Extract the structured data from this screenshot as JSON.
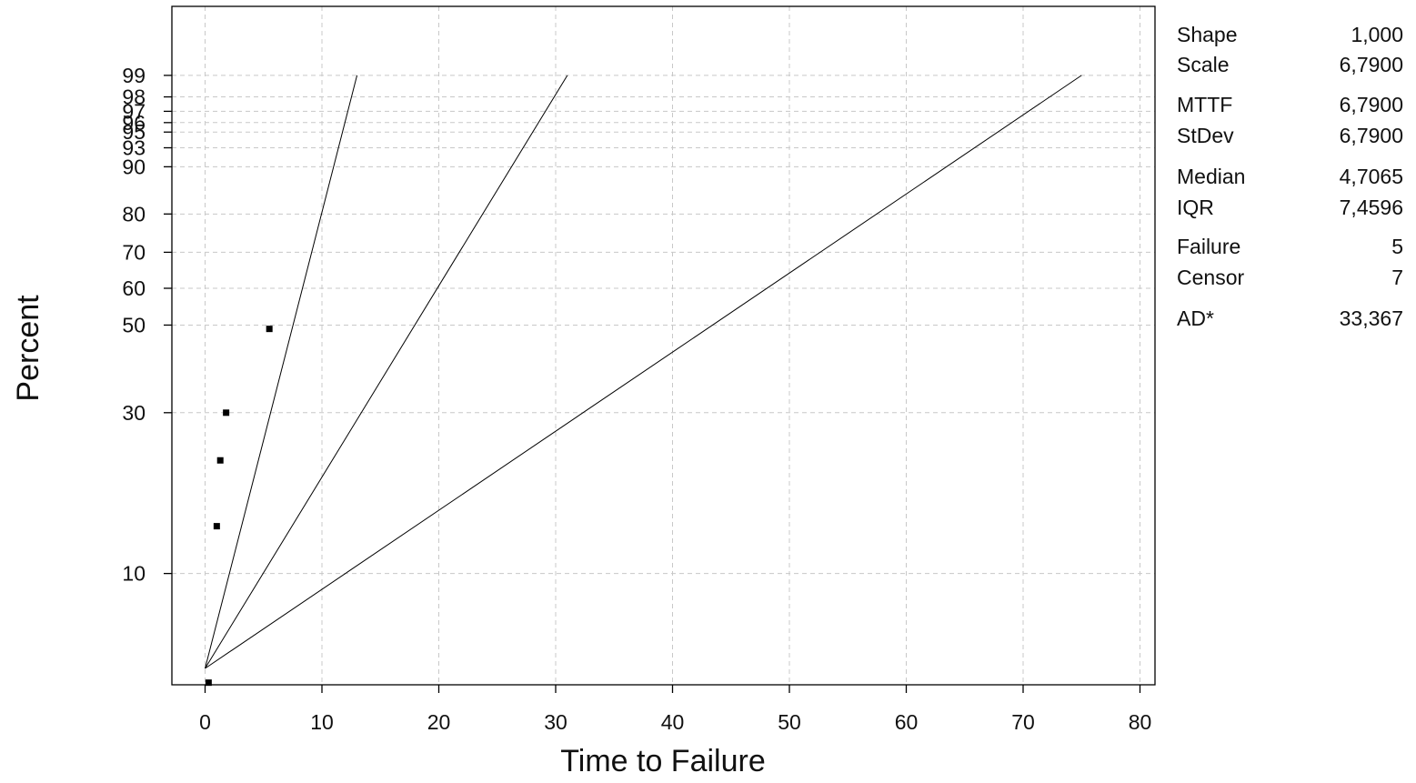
{
  "chart_data": {
    "type": "scatter",
    "title": "",
    "xlabel": "Time to Failure",
    "ylabel": "Percent",
    "xlim": [
      -3,
      81
    ],
    "x_ticks": [
      0,
      10,
      20,
      30,
      40,
      50,
      60,
      70,
      80
    ],
    "x_tick_labels": [
      "0",
      "10",
      "20",
      "30",
      "40",
      "50",
      "60",
      "70",
      "80"
    ],
    "y_scale": "exponential probability (-ln(1-p))",
    "y_ticks": [
      10,
      30,
      50,
      60,
      70,
      80,
      90,
      93,
      95,
      96,
      97,
      98,
      99
    ],
    "y_tick_labels": [
      "10",
      "30",
      "50",
      "60",
      "70",
      "80",
      "90",
      "93",
      "95",
      "96",
      "97",
      "98",
      "99"
    ],
    "grid": true,
    "points": [
      {
        "x": 0.3,
        "y": 4.5
      },
      {
        "x": 1.0,
        "y": 14
      },
      {
        "x": 1.3,
        "y": 22
      },
      {
        "x": 1.8,
        "y": 30
      },
      {
        "x": 5.5,
        "y": 49
      }
    ],
    "lines": [
      {
        "x": [
          0,
          13
        ],
        "y": [
          5,
          99
        ]
      },
      {
        "x": [
          0,
          31
        ],
        "y": [
          5,
          99
        ]
      },
      {
        "x": [
          0,
          75
        ],
        "y": [
          5,
          99
        ]
      }
    ],
    "stats": [
      {
        "label": "Shape",
        "value": "1,000"
      },
      {
        "label": "Scale",
        "value": "6,7900"
      },
      {
        "label": "MTTF",
        "value": "6,7900"
      },
      {
        "label": "StDev",
        "value": "6,7900"
      },
      {
        "label": "Median",
        "value": "4,7065"
      },
      {
        "label": "IQR",
        "value": "7,4596"
      },
      {
        "label": "Failure",
        "value": "5"
      },
      {
        "label": "Censor",
        "value": "7"
      },
      {
        "label": "AD*",
        "value": "33,367"
      }
    ]
  }
}
